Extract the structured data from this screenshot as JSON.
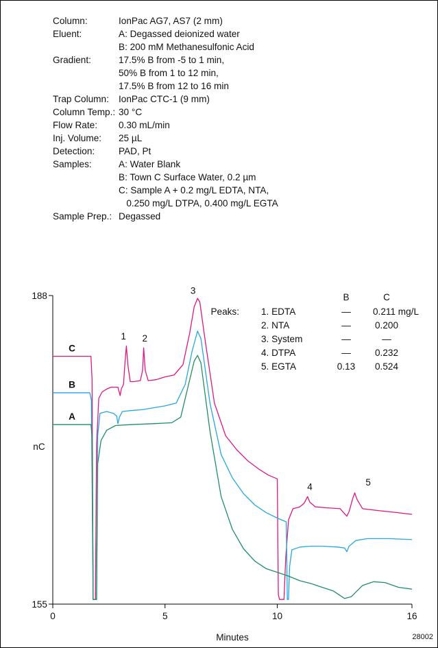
{
  "conditions": [
    {
      "label": "Column:",
      "lines": [
        "IonPac AG7, AS7 (2 mm)"
      ]
    },
    {
      "label": "Eluent:",
      "lines": [
        "A: Degassed deionized water",
        "B: 200 mM Methanesulfonic Acid"
      ]
    },
    {
      "label": "Gradient:",
      "lines": [
        "17.5% B from -5 to 1 min,",
        "50% B from 1 to 12 min,",
        "17.5% B from 12 to 16 min"
      ]
    },
    {
      "label": "Trap Column:",
      "lines": [
        "IonPac CTC-1 (9 mm)"
      ]
    },
    {
      "label": "Column Temp.:",
      "lines": [
        "30 °C"
      ]
    },
    {
      "label": "Flow Rate:",
      "lines": [
        "0.30 mL/min"
      ]
    },
    {
      "label": "Inj. Volume:",
      "lines": [
        "25 µL"
      ]
    },
    {
      "label": "Detection:",
      "lines": [
        "PAD, Pt"
      ]
    },
    {
      "label": "Samples:",
      "lines": [
        "A: Water Blank",
        "B: Town C Surface Water, 0.2 µm",
        "C: Sample A + 0.2 mg/L EDTA, NTA,",
        "   0.250 mg/L DTPA, 0.400 mg/L EGTA"
      ]
    },
    {
      "label": "Sample Prep.:",
      "lines": [
        "Degassed"
      ]
    }
  ],
  "figure_id": "28002",
  "chart_data": {
    "type": "line",
    "xlabel": "Minutes",
    "ylabel": "nC",
    "xlim": [
      0,
      16
    ],
    "ylim": [
      155,
      188
    ],
    "x_ticks": [
      "0",
      "5",
      "10",
      "16"
    ],
    "y_ticks": [
      "155",
      "188"
    ],
    "series": [
      {
        "name": "C",
        "color": "#e0157f",
        "points": [
          [
            0,
            181.5
          ],
          [
            1.7,
            181.5
          ],
          [
            1.75,
            179
          ],
          [
            1.8,
            155.5
          ],
          [
            1.9,
            155.5
          ],
          [
            1.95,
            172
          ],
          [
            2.05,
            177
          ],
          [
            2.2,
            177.7
          ],
          [
            2.4,
            178
          ],
          [
            2.6,
            178.2
          ],
          [
            2.9,
            178.2
          ],
          [
            3.0,
            177.3
          ],
          [
            3.05,
            178
          ],
          [
            3.15,
            178.5
          ],
          [
            3.22,
            181
          ],
          [
            3.28,
            182.6
          ],
          [
            3.35,
            180.5
          ],
          [
            3.45,
            178.8
          ],
          [
            3.6,
            178.8
          ],
          [
            3.9,
            178.9
          ],
          [
            4.0,
            180
          ],
          [
            4.05,
            182.4
          ],
          [
            4.12,
            180
          ],
          [
            4.25,
            178.9
          ],
          [
            4.6,
            179
          ],
          [
            5.0,
            179.3
          ],
          [
            5.4,
            179.5
          ],
          [
            5.8,
            180.6
          ],
          [
            6.1,
            184
          ],
          [
            6.3,
            186.8
          ],
          [
            6.45,
            187.7
          ],
          [
            6.55,
            187.3
          ],
          [
            6.8,
            183
          ],
          [
            7.2,
            176.5
          ],
          [
            7.7,
            173
          ],
          [
            8.2,
            171.5
          ],
          [
            8.7,
            170.3
          ],
          [
            9.2,
            169.4
          ],
          [
            9.6,
            168.8
          ],
          [
            10.0,
            168.4
          ],
          [
            10.05,
            156
          ],
          [
            10.1,
            155.5
          ],
          [
            10.3,
            155.5
          ],
          [
            10.38,
            160
          ],
          [
            10.5,
            164
          ],
          [
            10.7,
            165.2
          ],
          [
            11.0,
            165.4
          ],
          [
            11.2,
            165.8
          ],
          [
            11.35,
            166.5
          ],
          [
            11.45,
            165.9
          ],
          [
            11.7,
            165.4
          ],
          [
            12.2,
            165.3
          ],
          [
            12.8,
            165.2
          ],
          [
            13.1,
            164.4
          ],
          [
            13.2,
            164.9
          ],
          [
            13.35,
            166.2
          ],
          [
            13.45,
            166.9
          ],
          [
            13.55,
            166.2
          ],
          [
            13.8,
            165.2
          ],
          [
            14.5,
            165
          ],
          [
            15.3,
            164.8
          ],
          [
            16,
            164.6
          ]
        ]
      },
      {
        "name": "B",
        "color": "#22a8e0",
        "points": [
          [
            0,
            177.6
          ],
          [
            1.65,
            177.6
          ],
          [
            1.72,
            176.8
          ],
          [
            1.8,
            155.5
          ],
          [
            1.95,
            155.5
          ],
          [
            2.0,
            173
          ],
          [
            2.1,
            175.4
          ],
          [
            2.4,
            175.6
          ],
          [
            2.7,
            175.4
          ],
          [
            2.85,
            175.1
          ],
          [
            2.9,
            174.3
          ],
          [
            2.97,
            175
          ],
          [
            3.1,
            175.6
          ],
          [
            3.5,
            175.7
          ],
          [
            4.0,
            175.8
          ],
          [
            4.5,
            176
          ],
          [
            5.0,
            176.2
          ],
          [
            5.5,
            176.5
          ],
          [
            5.9,
            178.5
          ],
          [
            6.2,
            182
          ],
          [
            6.45,
            184.2
          ],
          [
            6.6,
            183.4
          ],
          [
            7.0,
            176.5
          ],
          [
            7.5,
            171
          ],
          [
            8.0,
            168.5
          ],
          [
            8.5,
            166.8
          ],
          [
            9.0,
            165.6
          ],
          [
            9.5,
            164.8
          ],
          [
            10.0,
            164.2
          ],
          [
            10.4,
            163.8
          ],
          [
            10.45,
            155.5
          ],
          [
            10.5,
            155.5
          ],
          [
            10.55,
            159
          ],
          [
            10.65,
            160.8
          ],
          [
            11.0,
            161.1
          ],
          [
            11.5,
            161.2
          ],
          [
            12.0,
            161.2
          ],
          [
            12.7,
            161.1
          ],
          [
            13.0,
            161
          ],
          [
            13.1,
            160.6
          ],
          [
            13.2,
            161.2
          ],
          [
            13.5,
            161.8
          ],
          [
            14.0,
            162
          ],
          [
            15.0,
            162
          ],
          [
            16,
            161.9
          ]
        ]
      },
      {
        "name": "A",
        "color": "#1f8f5f",
        "points": [
          [
            0,
            174.2
          ],
          [
            1.7,
            174.2
          ],
          [
            1.75,
            173
          ],
          [
            1.8,
            155.5
          ],
          [
            1.95,
            155.5
          ],
          [
            2.0,
            170
          ],
          [
            2.15,
            172.5
          ],
          [
            2.4,
            173.6
          ],
          [
            2.8,
            174.1
          ],
          [
            3.5,
            174.2
          ],
          [
            4.5,
            174.3
          ],
          [
            5.3,
            174.4
          ],
          [
            5.7,
            175
          ],
          [
            6.0,
            178
          ],
          [
            6.3,
            181
          ],
          [
            6.45,
            181.6
          ],
          [
            6.6,
            180.8
          ],
          [
            7.0,
            173.5
          ],
          [
            7.5,
            166.5
          ],
          [
            8.0,
            163
          ],
          [
            8.5,
            160.9
          ],
          [
            9.0,
            159.6
          ],
          [
            9.5,
            158.8
          ],
          [
            10.0,
            158.4
          ],
          [
            10.5,
            158
          ],
          [
            11.0,
            157.5
          ],
          [
            11.5,
            157.2
          ],
          [
            12.0,
            156.8
          ],
          [
            12.5,
            156.4
          ],
          [
            13.0,
            155.6
          ],
          [
            13.3,
            155.8
          ],
          [
            13.8,
            157
          ],
          [
            14.3,
            157.4
          ],
          [
            14.8,
            157.3
          ],
          [
            15.4,
            156.8
          ],
          [
            16,
            156.6
          ]
        ]
      }
    ],
    "series_labels": [
      {
        "text": "C",
        "x": 0.4,
        "y": 181.8
      },
      {
        "text": "B",
        "x": 0.4,
        "y": 177.9
      },
      {
        "text": "A",
        "x": 0.4,
        "y": 174.5
      }
    ],
    "peak_labels": [
      {
        "text": "1",
        "x": 3.15,
        "y": 183.3
      },
      {
        "text": "2",
        "x": 4.1,
        "y": 183.1
      },
      {
        "text": "3",
        "x": 6.25,
        "y": 188.2
      },
      {
        "text": "4",
        "x": 11.45,
        "y": 167.2
      },
      {
        "text": "5",
        "x": 14.05,
        "y": 167.7
      }
    ],
    "peak_table": {
      "title": "Peaks:",
      "columns": [
        "B",
        "C"
      ],
      "rows": [
        {
          "name": "1. EDTA",
          "B": "—",
          "C": "0.211 mg/L"
        },
        {
          "name": "2. NTA",
          "B": "—",
          "C": "0.200"
        },
        {
          "name": "3. System",
          "B": "—",
          "C": "—"
        },
        {
          "name": "4. DTPA",
          "B": "—",
          "C": "0.232"
        },
        {
          "name": "5. EGTA",
          "B": "0.13",
          "C": "0.524"
        }
      ]
    }
  }
}
